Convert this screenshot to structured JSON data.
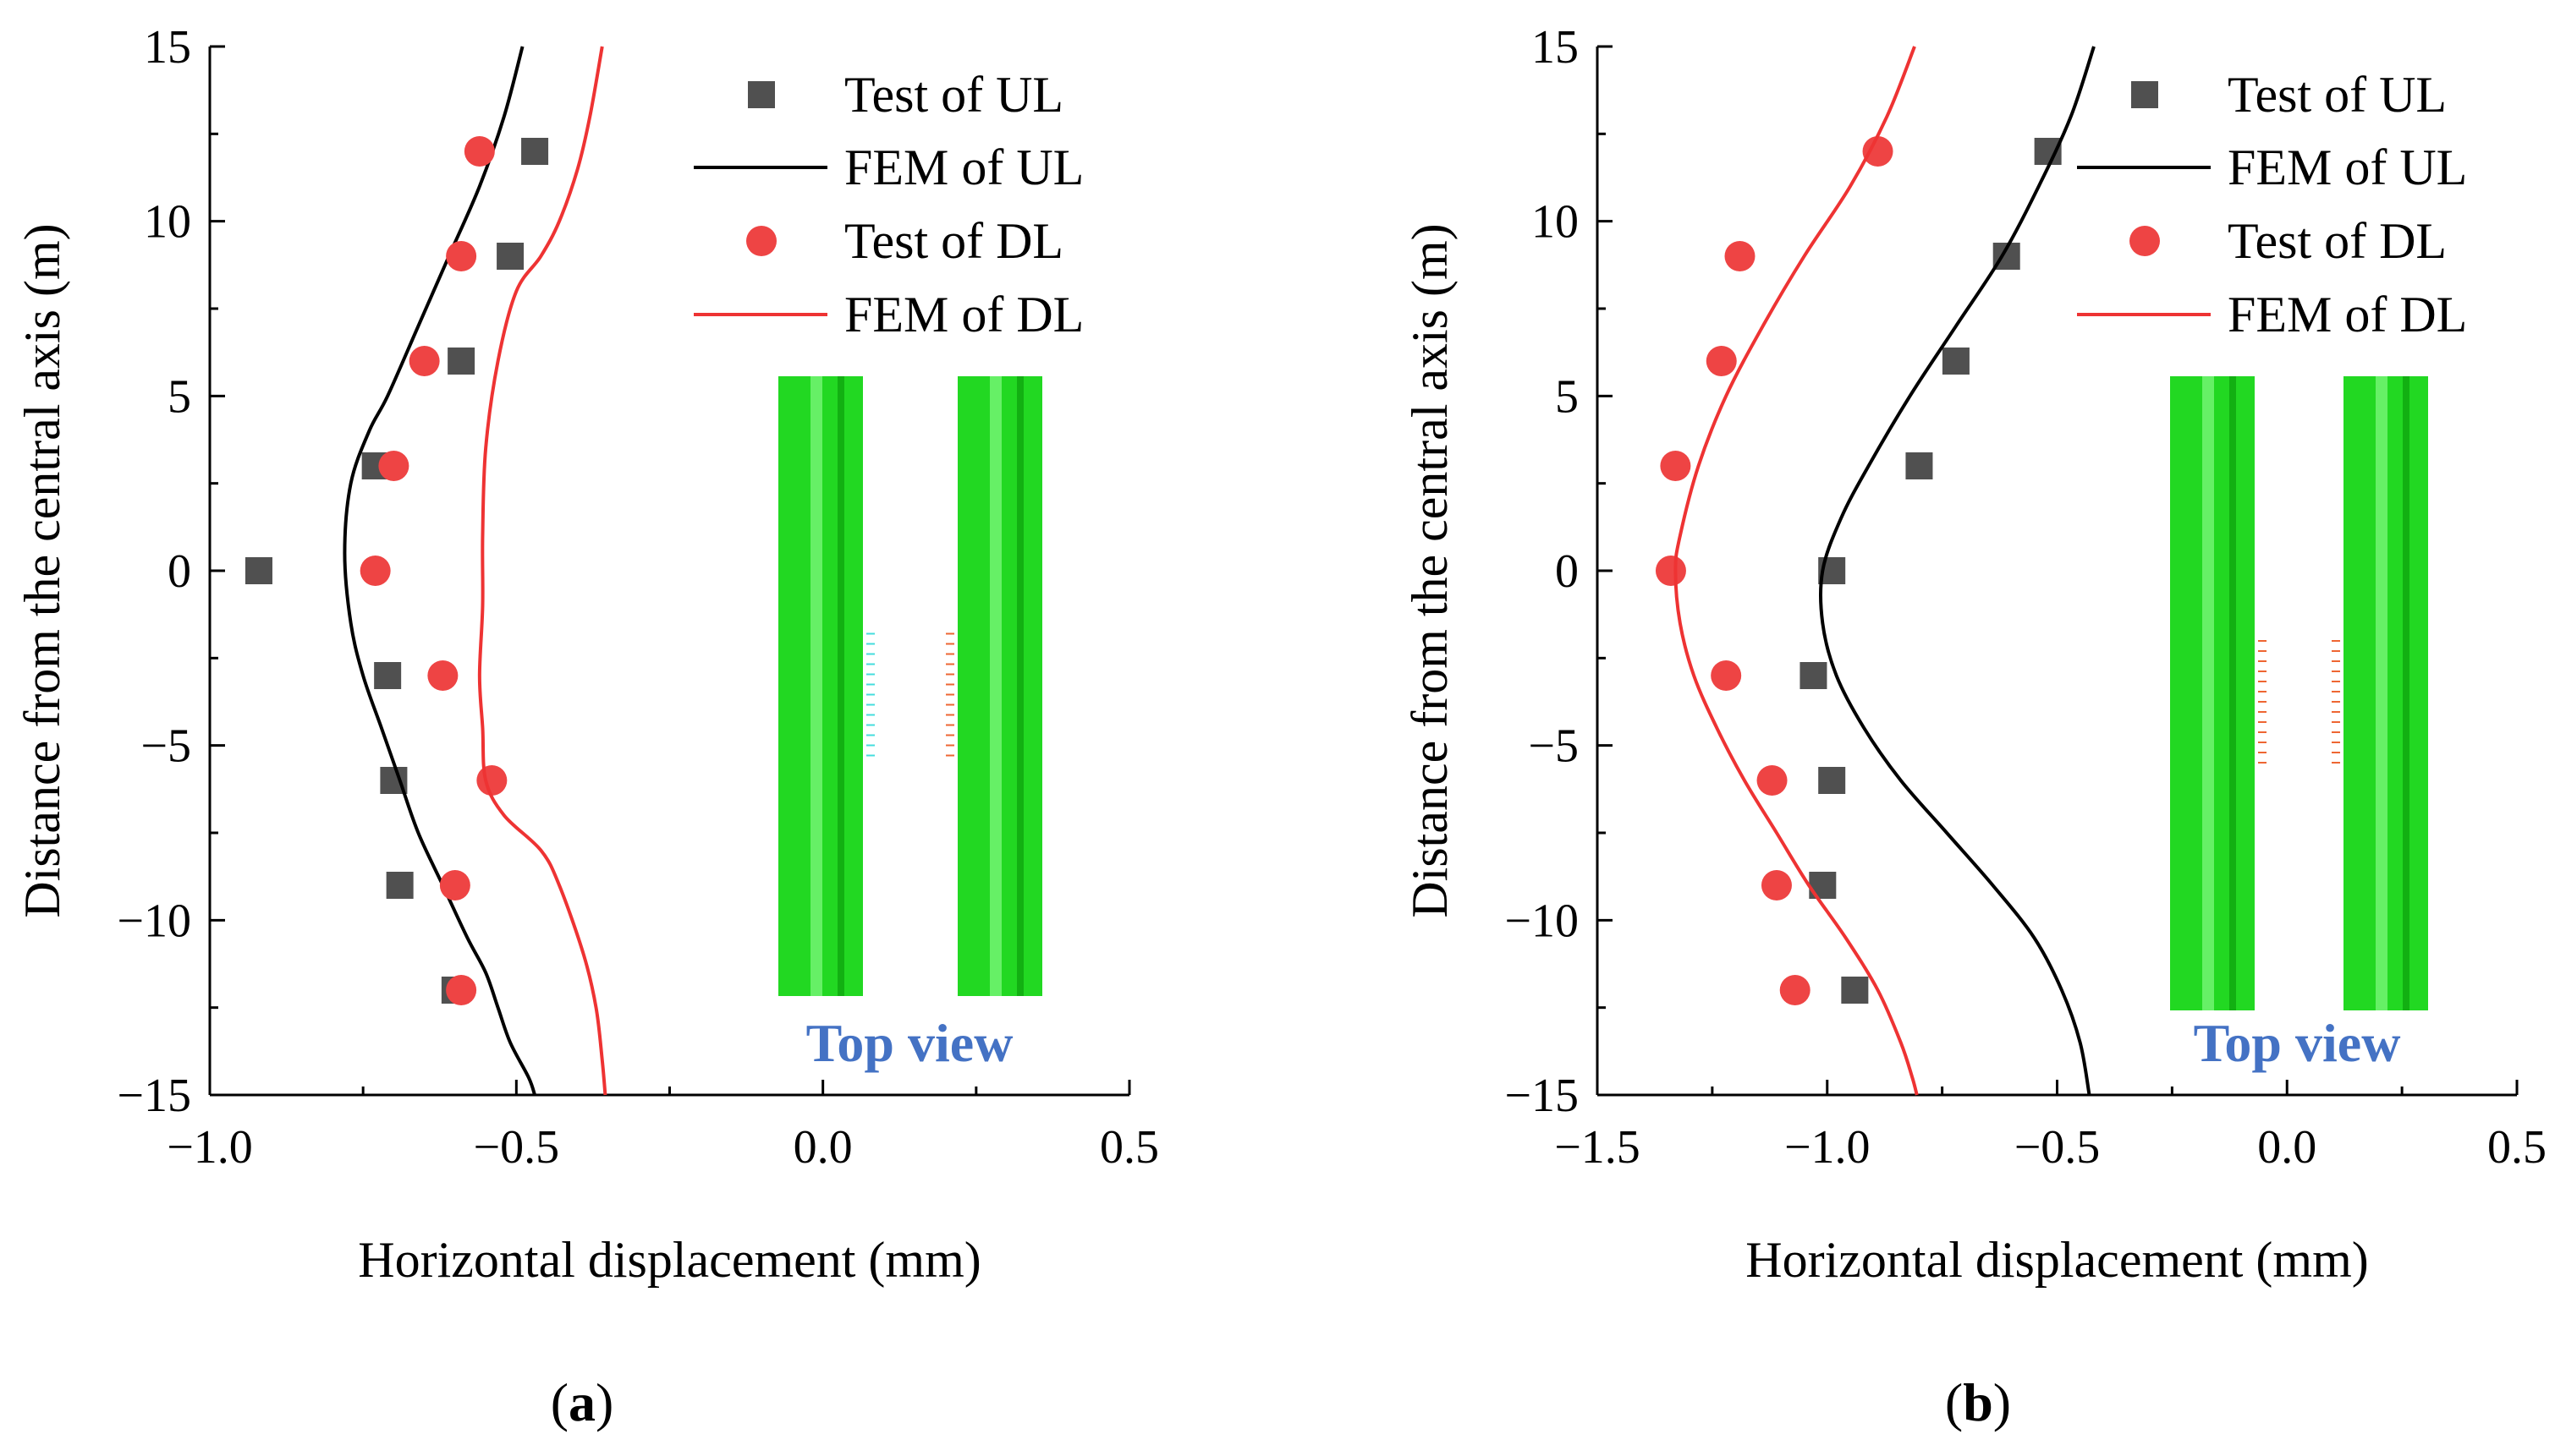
{
  "figure": {
    "panel_labels": [
      "a",
      "b"
    ]
  },
  "colors": {
    "ul": "#505050",
    "dl": "#ee4444",
    "ul_line": "#000000",
    "dl_line": "#ee3333",
    "inset_label": "#4472c4",
    "beam": "#22d822",
    "beam_light": "#66f066",
    "beam_dark": "#12b012"
  },
  "inset": {
    "label": "Top view"
  },
  "chart_data": [
    {
      "type": "scatter",
      "panel": "a",
      "xlabel": "Horizontal displacement (mm)",
      "ylabel": "Distance from the central axis (m)",
      "xlim": [
        -1.0,
        0.5
      ],
      "ylim": [
        -15,
        15
      ],
      "xticks": [
        -1.0,
        -0.5,
        0.0,
        0.5
      ],
      "xtick_labels": [
        "−1.0",
        "−0.5",
        "0.0",
        "0.5"
      ],
      "yticks": [
        15,
        10,
        5,
        0,
        -5,
        -10,
        -15
      ],
      "ytick_labels": [
        "15",
        "10",
        "5",
        "0",
        "−5",
        "−10",
        "−15"
      ],
      "legend": [
        "Test of UL",
        "FEM of UL",
        "Test of DL",
        "FEM of DL"
      ],
      "legend_position": "top-right",
      "series": [
        {
          "name": "Test of UL",
          "kind": "square",
          "x": [
            -0.47,
            -0.51,
            -0.59,
            -0.73,
            -0.92,
            -0.71,
            -0.7,
            -0.69,
            -0.6
          ],
          "y": [
            12,
            9,
            6,
            3,
            0,
            -3,
            -6,
            -9,
            -12
          ]
        },
        {
          "name": "FEM of UL",
          "kind": "line",
          "x": [
            -0.49,
            -0.52,
            -0.56,
            -0.61,
            -0.66,
            -0.71,
            -0.74,
            -0.77,
            -0.78,
            -0.77,
            -0.75,
            -0.72,
            -0.69,
            -0.66,
            -0.62,
            -0.58,
            -0.55,
            -0.53,
            -0.51,
            -0.48,
            -0.47
          ],
          "y": [
            15,
            13,
            11,
            9,
            7,
            5,
            4,
            2.5,
            0.5,
            -1.5,
            -3,
            -4.5,
            -6,
            -7.5,
            -9,
            -10.5,
            -11.5,
            -12.5,
            -13.5,
            -14.5,
            -15
          ]
        },
        {
          "name": "Test of DL",
          "kind": "circle",
          "x": [
            -0.56,
            -0.59,
            -0.65,
            -0.7,
            -0.73,
            -0.62,
            -0.54,
            -0.6,
            -0.59
          ],
          "y": [
            12,
            9,
            6,
            3,
            0,
            -3,
            -6,
            -9,
            -12
          ]
        },
        {
          "name": "FEM of DL",
          "kind": "line",
          "x": [
            -0.36,
            -0.38,
            -0.4,
            -0.43,
            -0.46,
            -0.5,
            -0.53,
            -0.55,
            -0.555,
            -0.555,
            -0.56,
            -0.555,
            -0.55,
            -0.52,
            -0.46,
            -0.43,
            -0.39,
            -0.37,
            -0.36,
            -0.355
          ],
          "y": [
            15,
            13,
            11.5,
            10,
            9,
            8,
            6,
            3.5,
            1,
            -1,
            -3,
            -4.5,
            -6,
            -7,
            -8,
            -9,
            -11,
            -12.5,
            -14,
            -15
          ]
        }
      ]
    },
    {
      "type": "scatter",
      "panel": "b",
      "xlabel": "Horizontal displacement (mm)",
      "ylabel": "Distance from the central axis (m)",
      "xlim": [
        -1.5,
        0.5
      ],
      "ylim": [
        -15,
        15
      ],
      "xticks": [
        -1.5,
        -1.0,
        -0.5,
        0.0,
        0.5
      ],
      "xtick_labels": [
        "−1.5",
        "−1.0",
        "−0.5",
        "0.0",
        "0.5"
      ],
      "yticks": [
        15,
        10,
        5,
        0,
        -5,
        -10,
        -15
      ],
      "ytick_labels": [
        "15",
        "10",
        "5",
        "0",
        "−5",
        "−10",
        "−15"
      ],
      "legend": [
        "Test of UL",
        "FEM of UL",
        "Test of DL",
        "FEM of DL"
      ],
      "legend_position": "top-right",
      "series": [
        {
          "name": "Test of UL",
          "kind": "square",
          "x": [
            -0.52,
            -0.61,
            -0.72,
            -0.8,
            -0.99,
            -1.03,
            -0.99,
            -1.01,
            -0.94
          ],
          "y": [
            12,
            9,
            6,
            3,
            0,
            -3,
            -6,
            -9,
            -12
          ]
        },
        {
          "name": "FEM of UL",
          "kind": "line",
          "x": [
            -0.42,
            -0.47,
            -0.54,
            -0.62,
            -0.72,
            -0.82,
            -0.91,
            -0.97,
            -1.01,
            -1.01,
            -0.98,
            -0.92,
            -0.84,
            -0.74,
            -0.64,
            -0.55,
            -0.49,
            -0.45,
            -0.43
          ],
          "y": [
            15,
            13,
            11,
            9,
            7,
            5,
            3,
            1.5,
            0,
            -1.5,
            -3,
            -4.5,
            -6,
            -7.5,
            -9,
            -10.5,
            -12,
            -13.5,
            -15
          ]
        },
        {
          "name": "Test of DL",
          "kind": "circle",
          "x": [
            -0.89,
            -1.19,
            -1.23,
            -1.33,
            -1.34,
            -1.22,
            -1.12,
            -1.11,
            -1.07
          ],
          "y": [
            12,
            9,
            6,
            3,
            0,
            -3,
            -6,
            -9,
            -12
          ]
        },
        {
          "name": "FEM of DL",
          "kind": "line",
          "x": [
            -0.81,
            -0.87,
            -0.95,
            -1.05,
            -1.14,
            -1.22,
            -1.28,
            -1.32,
            -1.33,
            -1.32,
            -1.29,
            -1.24,
            -1.18,
            -1.11,
            -1.04,
            -0.96,
            -0.89,
            -0.84,
            -0.815,
            -0.805
          ],
          "y": [
            15,
            13,
            11,
            9,
            7,
            5,
            3,
            1,
            0,
            -1.5,
            -3,
            -4.5,
            -6,
            -7.5,
            -9,
            -10.5,
            -12,
            -13.5,
            -14.5,
            -15
          ]
        }
      ]
    }
  ]
}
